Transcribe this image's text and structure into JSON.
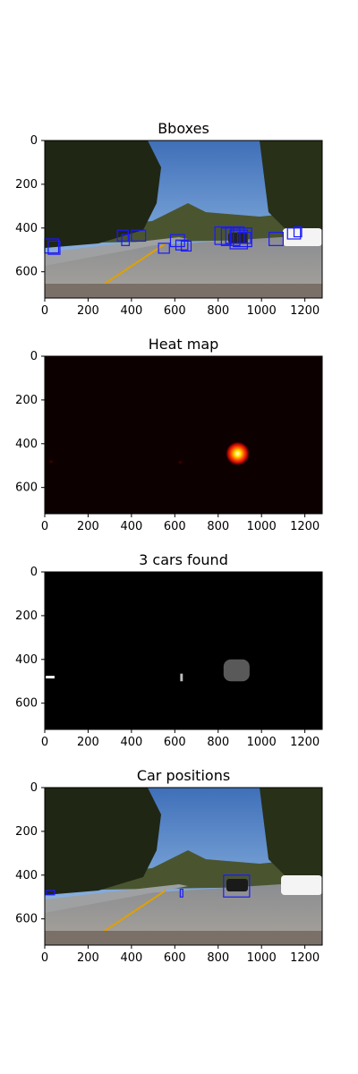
{
  "colors": {
    "bbox": "#1a1aff",
    "heat_bg": "#0c0000",
    "label_bg": "#000000",
    "label_blob": "#595959",
    "label_white": "#ffffff"
  },
  "chart_data": [
    {
      "type": "image",
      "title": "Bboxes",
      "xlim": [
        0,
        1280
      ],
      "ylim": [
        720,
        0
      ],
      "xticks": [
        0,
        200,
        400,
        600,
        800,
        1000,
        1200
      ],
      "yticks": [
        0,
        200,
        400,
        600
      ],
      "background": "road-photo",
      "boxes": [
        [
          0,
          450,
          64,
          514
        ],
        [
          16,
          460,
          70,
          520
        ],
        [
          335,
          410,
          385,
          460
        ],
        [
          355,
          430,
          390,
          480
        ],
        [
          400,
          410,
          465,
          460
        ],
        [
          525,
          470,
          575,
          515
        ],
        [
          580,
          430,
          645,
          485
        ],
        [
          605,
          455,
          660,
          500
        ],
        [
          630,
          460,
          675,
          505
        ],
        [
          785,
          395,
          860,
          475
        ],
        [
          815,
          400,
          900,
          480
        ],
        [
          835,
          395,
          920,
          470
        ],
        [
          855,
          410,
          935,
          495
        ],
        [
          870,
          400,
          955,
          485
        ],
        [
          890,
          420,
          950,
          470
        ],
        [
          1035,
          420,
          1100,
          480
        ],
        [
          1120,
          400,
          1180,
          450
        ],
        [
          1150,
          395,
          1185,
          440
        ]
      ]
    },
    {
      "type": "heatmap",
      "title": "Heat map",
      "xlim": [
        0,
        1280
      ],
      "ylim": [
        720,
        0
      ],
      "xticks": [
        0,
        200,
        400,
        600,
        800,
        1000,
        1200
      ],
      "yticks": [
        0,
        200,
        400,
        600
      ],
      "hotspots": [
        {
          "x": 890,
          "y": 445,
          "intensity": 1.0
        },
        {
          "x": 625,
          "y": 485,
          "intensity": 0.25
        },
        {
          "x": 30,
          "y": 482,
          "intensity": 0.15
        }
      ]
    },
    {
      "type": "image",
      "title": "3 cars found",
      "xlim": [
        0,
        1280
      ],
      "ylim": [
        720,
        0
      ],
      "xticks": [
        0,
        200,
        400,
        600,
        800,
        1000,
        1200
      ],
      "yticks": [
        0,
        200,
        400,
        600
      ],
      "labels": [
        {
          "x": [
            5,
            45
          ],
          "y": [
            475,
            487
          ],
          "shade": "white"
        },
        {
          "x": [
            625,
            637
          ],
          "y": [
            465,
            500
          ],
          "shade": "light"
        },
        {
          "x": [
            825,
            945
          ],
          "y": [
            400,
            500
          ],
          "shade": "gray"
        }
      ]
    },
    {
      "type": "image",
      "title": "Car positions",
      "xlim": [
        0,
        1280
      ],
      "ylim": [
        720,
        0
      ],
      "xticks": [
        0,
        200,
        400,
        600,
        800,
        1000,
        1200
      ],
      "yticks": [
        0,
        200,
        400,
        600
      ],
      "background": "road-photo",
      "boxes": [
        [
          5,
          470,
          45,
          490
        ],
        [
          625,
          465,
          637,
          500
        ],
        [
          825,
          400,
          945,
          500
        ]
      ]
    }
  ]
}
